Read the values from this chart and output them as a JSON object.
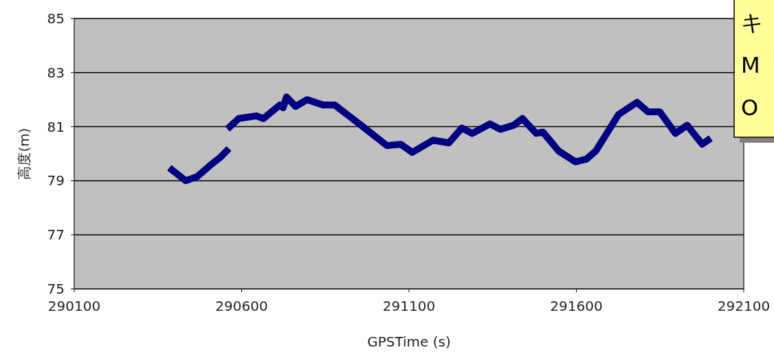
{
  "chart_data": {
    "type": "line",
    "xlabel": "GPSTime (s)",
    "ylabel": "高度(m)",
    "x": [
      290392,
      290433,
      290467,
      290509,
      290535,
      290555,
      290560,
      290565,
      290591,
      290644,
      290665,
      290714,
      290724,
      290734,
      290761,
      290796,
      290843,
      290878,
      290952,
      291034,
      291075,
      291110,
      291172,
      291219,
      291258,
      291289,
      291342,
      291373,
      291412,
      291439,
      291480,
      291500,
      291547,
      291597,
      291630,
      291658,
      291726,
      291781,
      291814,
      291849,
      291896,
      291931,
      291976,
      291993
    ],
    "series": [
      {
        "color": "#000080",
        "values": [
          79.4,
          79.0,
          79.15,
          79.6,
          79.85,
          80.1,
          null,
          81.0,
          81.3,
          81.4,
          81.3,
          81.8,
          81.7,
          82.1,
          81.75,
          82.0,
          81.8,
          81.8,
          81.1,
          80.3,
          80.35,
          80.05,
          80.5,
          80.4,
          80.95,
          80.75,
          81.1,
          80.9,
          81.05,
          81.3,
          80.75,
          80.8,
          80.1,
          79.7,
          79.8,
          80.1,
          81.45,
          81.9,
          81.55,
          81.55,
          80.75,
          81.05,
          80.35,
          80.5
        ]
      }
    ],
    "xlim": [
      290100,
      292100
    ],
    "xticks": [
      290100,
      290600,
      291100,
      291600,
      292100
    ],
    "ylim": [
      75,
      85
    ],
    "yticks": [
      75,
      77,
      79,
      81,
      83,
      85
    ],
    "grid": "y",
    "line_style": "solid",
    "marker": "none",
    "annotations": [
      "キ",
      "M",
      "O"
    ]
  }
}
